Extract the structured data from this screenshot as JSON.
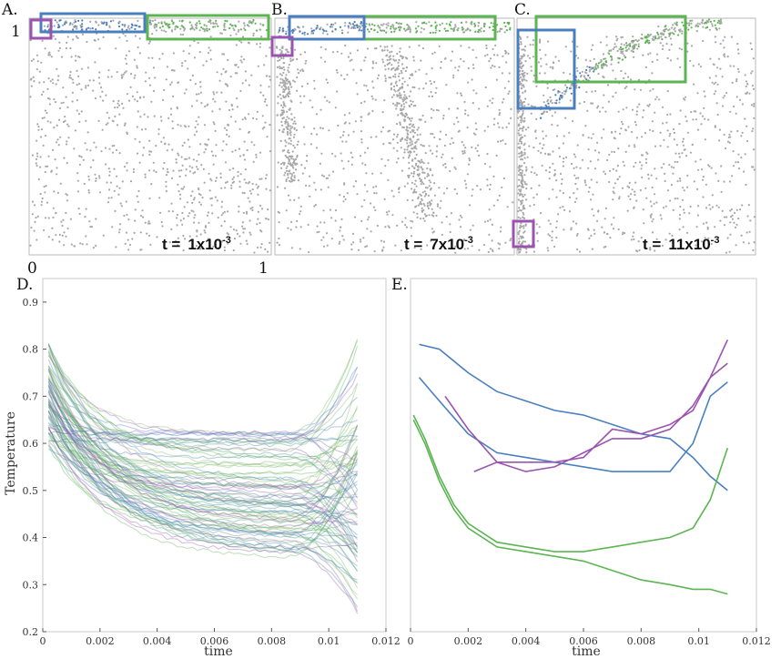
{
  "top_panels": [
    {
      "label": "A.",
      "time_prefix": "t =",
      "time_mantissa": "1x10",
      "time_exp": "-3",
      "axis_top": "1",
      "axis_x_min": "0",
      "axis_x_max": "1",
      "particles": "uniform"
    },
    {
      "label": "B.",
      "time_prefix": "t =",
      "time_mantissa": "7x10",
      "time_exp": "-3",
      "particles": "two-plumes"
    },
    {
      "label": "C.",
      "time_prefix": "t =",
      "time_mantissa": "11x10",
      "time_exp": "-3",
      "particles": "spreading-plume"
    }
  ],
  "colors": {
    "blue": "#4a7fbf",
    "green": "#5cb552",
    "purple": "#9a54b0",
    "particle": "#a8a8a8"
  },
  "chart_data": [
    {
      "panel": "D.",
      "type": "line",
      "xlabel": "time",
      "ylabel": "Temperature",
      "xlim": [
        0,
        0.012
      ],
      "ylim": [
        0.2,
        0.95
      ],
      "xticks": [
        "0",
        "0.002",
        "0.004",
        "0.006",
        "0.008",
        "0.01",
        "0.012"
      ],
      "yticks": [
        "0.2",
        "0.3",
        "0.4",
        "0.5",
        "0.6",
        "0.7",
        "0.8",
        "0.9"
      ],
      "note": "ensemble of ~80 particle temperature trajectories (blue-green-purple)"
    },
    {
      "panel": "E.",
      "type": "line",
      "xlabel": "time",
      "xlim": [
        0,
        0.012
      ],
      "ylim": [
        0.2,
        0.95
      ],
      "xticks": [
        "0",
        "0.002",
        "0.004",
        "0.006",
        "0.008",
        "0.01",
        "0.012"
      ],
      "series": [
        {
          "color": "blue",
          "x": [
            0.0003,
            0.001,
            0.002,
            0.003,
            0.004,
            0.005,
            0.006,
            0.007,
            0.008,
            0.009,
            0.0098,
            0.0104,
            0.011
          ],
          "y": [
            0.81,
            0.8,
            0.75,
            0.71,
            0.69,
            0.67,
            0.66,
            0.64,
            0.62,
            0.61,
            0.57,
            0.53,
            0.5
          ]
        },
        {
          "color": "blue",
          "x": [
            0.0003,
            0.001,
            0.002,
            0.003,
            0.004,
            0.005,
            0.006,
            0.007,
            0.008,
            0.009,
            0.0098,
            0.0104,
            0.011
          ],
          "y": [
            0.74,
            0.69,
            0.62,
            0.58,
            0.57,
            0.56,
            0.55,
            0.54,
            0.54,
            0.54,
            0.6,
            0.7,
            0.73
          ]
        },
        {
          "color": "purple",
          "x": [
            0.0022,
            0.003,
            0.004,
            0.005,
            0.006,
            0.007,
            0.008,
            0.009,
            0.0098,
            0.0104,
            0.011
          ],
          "y": [
            0.54,
            0.56,
            0.56,
            0.56,
            0.57,
            0.63,
            0.62,
            0.64,
            0.67,
            0.74,
            0.82
          ]
        },
        {
          "color": "purple",
          "x": [
            0.0012,
            0.002,
            0.003,
            0.004,
            0.005,
            0.006,
            0.007,
            0.008,
            0.009,
            0.0098,
            0.0104,
            0.011
          ],
          "y": [
            0.7,
            0.63,
            0.56,
            0.54,
            0.55,
            0.58,
            0.61,
            0.61,
            0.63,
            0.68,
            0.74,
            0.77
          ]
        },
        {
          "color": "green",
          "x": [
            0.0001,
            0.0005,
            0.001,
            0.0015,
            0.002,
            0.003,
            0.004,
            0.005,
            0.006,
            0.007,
            0.008,
            0.009,
            0.0098,
            0.0104,
            0.011
          ],
          "y": [
            0.66,
            0.61,
            0.53,
            0.47,
            0.43,
            0.39,
            0.38,
            0.37,
            0.37,
            0.38,
            0.39,
            0.4,
            0.42,
            0.48,
            0.59
          ]
        },
        {
          "color": "green",
          "x": [
            0.0001,
            0.0005,
            0.001,
            0.0015,
            0.002,
            0.003,
            0.004,
            0.005,
            0.006,
            0.007,
            0.008,
            0.009,
            0.0098,
            0.0104,
            0.011
          ],
          "y": [
            0.65,
            0.6,
            0.52,
            0.46,
            0.42,
            0.38,
            0.37,
            0.36,
            0.35,
            0.33,
            0.31,
            0.3,
            0.29,
            0.29,
            0.28
          ]
        }
      ]
    }
  ]
}
